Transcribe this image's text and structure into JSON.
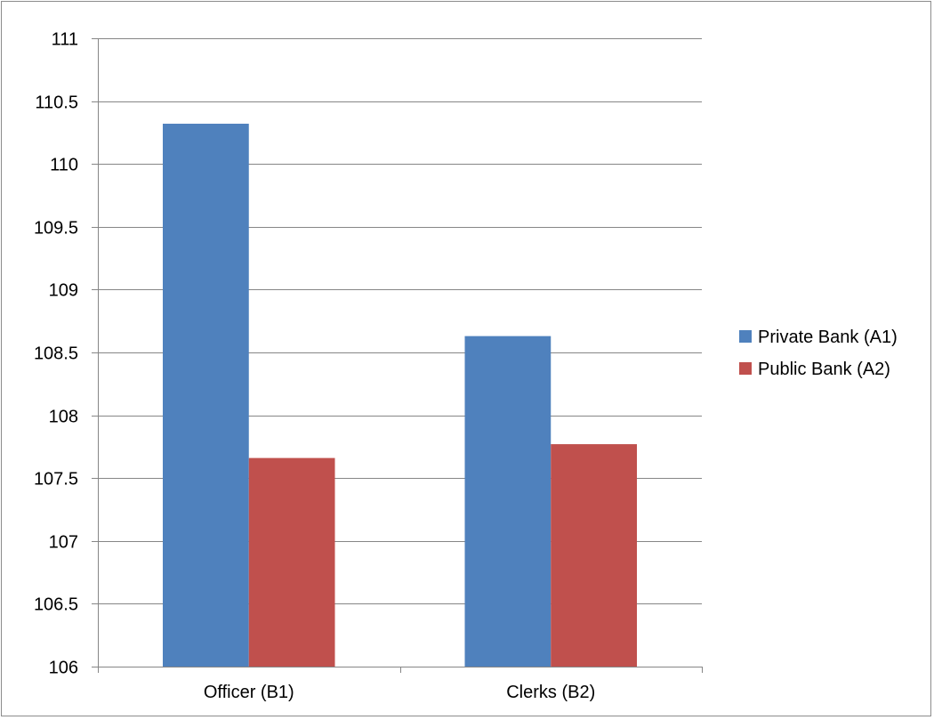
{
  "chart_data": {
    "type": "bar",
    "title": "",
    "xlabel": "",
    "ylabel": "",
    "categories": [
      "Officer (B1)",
      "Clerks (B2)"
    ],
    "series": [
      {
        "name": "Private Bank (A1)",
        "values": [
          110.32,
          108.63
        ],
        "color": "#4f81bd"
      },
      {
        "name": "Public Bank (A2)",
        "values": [
          107.66,
          107.77
        ],
        "color": "#c0504d"
      }
    ],
    "ylim": [
      106,
      111
    ],
    "yticks": [
      "106",
      "106.5",
      "107",
      "107.5",
      "108",
      "108.5",
      "109",
      "109.5",
      "110",
      "110.5",
      "111"
    ],
    "grid": true,
    "legend_position": "right",
    "axis_color": "#868686",
    "grid_color": "#868686"
  }
}
